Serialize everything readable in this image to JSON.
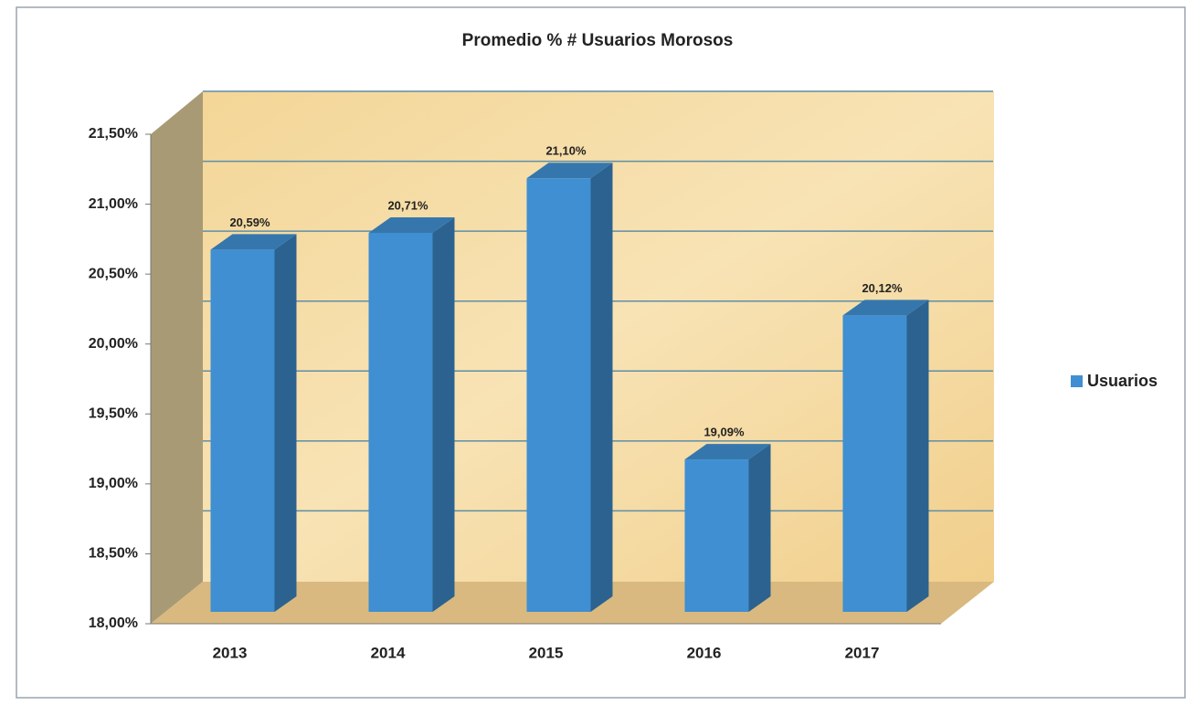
{
  "chart_data": {
    "type": "bar3d",
    "title": "Promedio % # Usuarios Morosos",
    "categories": [
      "2013",
      "2014",
      "2015",
      "2016",
      "2017"
    ],
    "series": [
      {
        "name": "Usuarios",
        "color": "#3f8fd2",
        "values": [
          20.59,
          20.71,
          21.1,
          19.09,
          20.12
        ],
        "value_labels": [
          "20,59%",
          "20,71%",
          "21,10%",
          "19,09%",
          "20,12%"
        ]
      }
    ],
    "ylim": [
      18,
      21.5
    ],
    "yticks": [
      {
        "value": 18,
        "label": "18,00%"
      },
      {
        "value": 18.5,
        "label": "18,50%"
      },
      {
        "value": 19,
        "label": "19,00%"
      },
      {
        "value": 19.5,
        "label": "19,50%"
      },
      {
        "value": 20,
        "label": "20,00%"
      },
      {
        "value": 20.5,
        "label": "20,50%"
      },
      {
        "value": 21,
        "label": "21,00%"
      },
      {
        "value": 21.5,
        "label": "21,50%"
      }
    ],
    "grid": true,
    "legend": "right"
  }
}
